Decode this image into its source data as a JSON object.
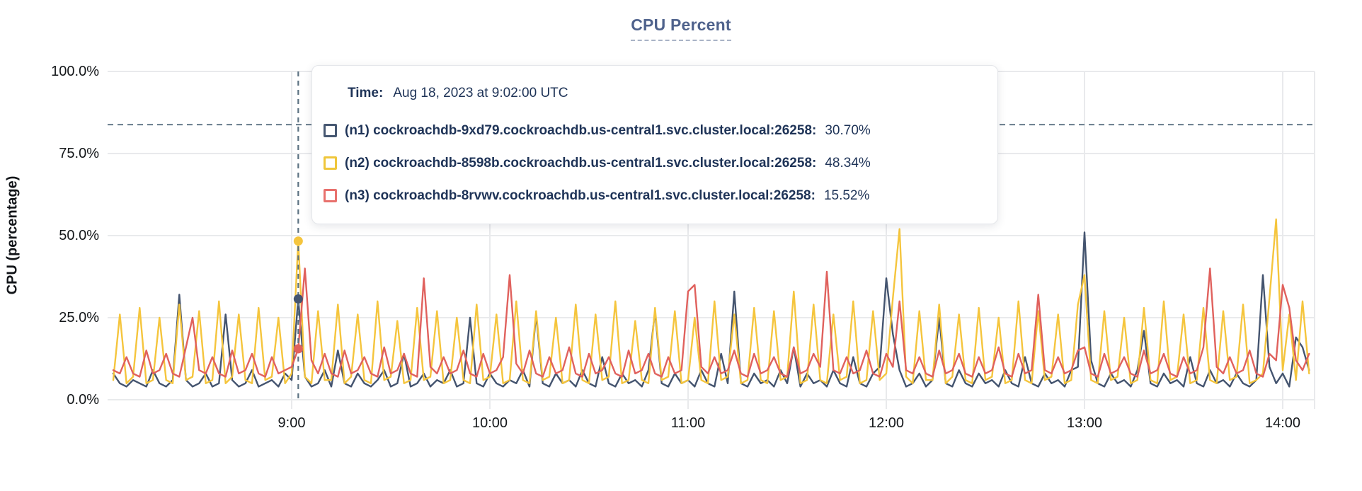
{
  "chart_data": {
    "type": "line",
    "title": "CPU Percent",
    "ylabel": "CPU (percentage)",
    "ylim": [
      0,
      100
    ],
    "grid": true,
    "y_ticks": [
      {
        "label": "0.0%",
        "value": 0
      },
      {
        "label": "25.0%",
        "value": 25
      },
      {
        "label": "50.0%",
        "value": 50
      },
      {
        "label": "75.0%",
        "value": 75
      },
      {
        "label": "100.0%",
        "value": 100
      }
    ],
    "x_ticks": [
      {
        "label": "9:00",
        "hour": 9
      },
      {
        "label": "10:00",
        "hour": 10
      },
      {
        "label": "11:00",
        "hour": 11
      },
      {
        "label": "12:00",
        "hour": 12
      },
      {
        "label": "13:00",
        "hour": 13
      },
      {
        "label": "14:00",
        "hour": 14
      }
    ],
    "x_start_hour": 8.1,
    "x_step_hours": 0.033333333,
    "series": [
      {
        "name": "(n1) cockroachdb-9xd79.cockroachdb.us-central1.svc.cluster.local:26258:",
        "color": "#44546f",
        "values": [
          8,
          5,
          4,
          6,
          5,
          4,
          9,
          5,
          4,
          6,
          32,
          6,
          4,
          5,
          8,
          4,
          5,
          26,
          6,
          4,
          5,
          9,
          4,
          5,
          6,
          4,
          8,
          6,
          30.7,
          7,
          4,
          5,
          9,
          4,
          15,
          5,
          4,
          8,
          5,
          4,
          6,
          9,
          4,
          5,
          14,
          4,
          5,
          8,
          4,
          6,
          5,
          9,
          4,
          5,
          25,
          5,
          4,
          8,
          5,
          4,
          6,
          5,
          9,
          4,
          26,
          5,
          4,
          8,
          5,
          6,
          4,
          9,
          5,
          4,
          13,
          5,
          4,
          8,
          5,
          6,
          4,
          9,
          27,
          5,
          4,
          8,
          5,
          6,
          4,
          9,
          5,
          4,
          14,
          5,
          33,
          5,
          4,
          8,
          5,
          6,
          4,
          9,
          5,
          16,
          4,
          8,
          5,
          6,
          4,
          9,
          5,
          4,
          13,
          5,
          4,
          8,
          10,
          37,
          20,
          9,
          4,
          5,
          8,
          4,
          6,
          25,
          5,
          4,
          9,
          5,
          4,
          8,
          5,
          6,
          4,
          9,
          5,
          4,
          13,
          5,
          4,
          8,
          5,
          6,
          4,
          9,
          10,
          51,
          12,
          5,
          4,
          8,
          5,
          6,
          4,
          9,
          21,
          5,
          4,
          8,
          5,
          6,
          4,
          13,
          5,
          4,
          9,
          5,
          6,
          4,
          8,
          5,
          4,
          6,
          38,
          10,
          5,
          8,
          4,
          19,
          16,
          9
        ]
      },
      {
        "name": "(n2) cockroachdb-8598b.cockroachdb.us-central1.svc.cluster.local:26258:",
        "color": "#f5c53d",
        "values": [
          6,
          26,
          5,
          7,
          28,
          5,
          6,
          25,
          6,
          5,
          29,
          6,
          7,
          27,
          5,
          6,
          30,
          5,
          7,
          26,
          6,
          5,
          28,
          6,
          7,
          25,
          5,
          8,
          48.34,
          7,
          5,
          27,
          6,
          6,
          29,
          5,
          7,
          26,
          6,
          5,
          30,
          6,
          7,
          24,
          5,
          6,
          28,
          6,
          7,
          27,
          5,
          6,
          25,
          6,
          5,
          29,
          6,
          7,
          26,
          5,
          6,
          30,
          6,
          5,
          27,
          6,
          7,
          25,
          5,
          6,
          29,
          6,
          5,
          26,
          6,
          7,
          30,
          5,
          6,
          24,
          6,
          5,
          28,
          6,
          7,
          27,
          5,
          6,
          25,
          6,
          5,
          30,
          6,
          7,
          26,
          5,
          6,
          28,
          6,
          5,
          27,
          6,
          7,
          33,
          5,
          6,
          29,
          6,
          5,
          26,
          6,
          7,
          30,
          5,
          6,
          27,
          6,
          8,
          31,
          52,
          7,
          5,
          27,
          6,
          6,
          29,
          5,
          7,
          26,
          6,
          5,
          28,
          6,
          7,
          25,
          5,
          6,
          30,
          6,
          5,
          27,
          6,
          7,
          26,
          5,
          6,
          29,
          38,
          6,
          5,
          27,
          6,
          7,
          25,
          5,
          6,
          28,
          6,
          5,
          30,
          6,
          7,
          26,
          5,
          6,
          28,
          6,
          5,
          27,
          6,
          7,
          29,
          5,
          6,
          8,
          31,
          55,
          9,
          26,
          6,
          30,
          8
        ]
      },
      {
        "name": "(n3) cockroachdb-8rvwv.cockroachdb.us-central1.svc.cluster.local:26258:",
        "color": "#e0615d",
        "values": [
          9,
          8,
          13,
          8,
          7,
          15,
          8,
          9,
          14,
          8,
          7,
          16,
          25,
          9,
          8,
          13,
          8,
          7,
          15,
          8,
          9,
          14,
          8,
          7,
          13,
          8,
          9,
          10,
          15.52,
          40,
          12,
          8,
          14,
          8,
          7,
          15,
          8,
          9,
          13,
          8,
          7,
          16,
          8,
          9,
          14,
          8,
          7,
          37,
          10,
          8,
          13,
          8,
          9,
          15,
          8,
          7,
          14,
          8,
          9,
          13,
          38,
          11,
          8,
          15,
          8,
          7,
          13,
          8,
          9,
          16,
          8,
          7,
          14,
          8,
          9,
          13,
          8,
          7,
          15,
          8,
          9,
          14,
          8,
          7,
          13,
          8,
          9,
          33,
          35,
          10,
          8,
          13,
          8,
          9,
          15,
          8,
          7,
          14,
          8,
          9,
          13,
          8,
          7,
          16,
          8,
          9,
          14,
          10,
          39,
          9,
          8,
          13,
          8,
          9,
          15,
          8,
          7,
          14,
          10,
          30,
          9,
          8,
          13,
          8,
          7,
          15,
          8,
          9,
          14,
          8,
          7,
          13,
          8,
          9,
          16,
          8,
          7,
          14,
          8,
          9,
          32,
          9,
          8,
          13,
          8,
          9,
          15,
          16,
          8,
          7,
          14,
          8,
          9,
          13,
          8,
          7,
          15,
          8,
          9,
          14,
          8,
          7,
          13,
          8,
          9,
          16,
          40,
          10,
          8,
          13,
          8,
          9,
          15,
          8,
          7,
          14,
          12,
          35,
          28,
          12,
          9,
          14
        ]
      }
    ],
    "hover": {
      "index": 28,
      "crosshair_color": "#5c7282",
      "horizontal_line_pct": 83.8
    },
    "grid_color": "#e9eaec",
    "legend_position": "tooltip"
  },
  "tooltip": {
    "time_label": "Time:",
    "time_value": "Aug 18, 2023 at 9:02:00 UTC",
    "rows": [
      {
        "name": "(n1) cockroachdb-9xd79.cockroachdb.us-central1.svc.cluster.local:26258:",
        "value": "30.70%",
        "color": "#475872"
      },
      {
        "name": "(n2) cockroachdb-8598b.cockroachdb.us-central1.svc.cluster.local:26258:",
        "value": "48.34%",
        "color": "#efc63b"
      },
      {
        "name": "(n3) cockroachdb-8rvwv.cockroachdb.us-central1.svc.cluster.local:26258:",
        "value": "15.52%",
        "color": "#e8716d"
      }
    ]
  }
}
